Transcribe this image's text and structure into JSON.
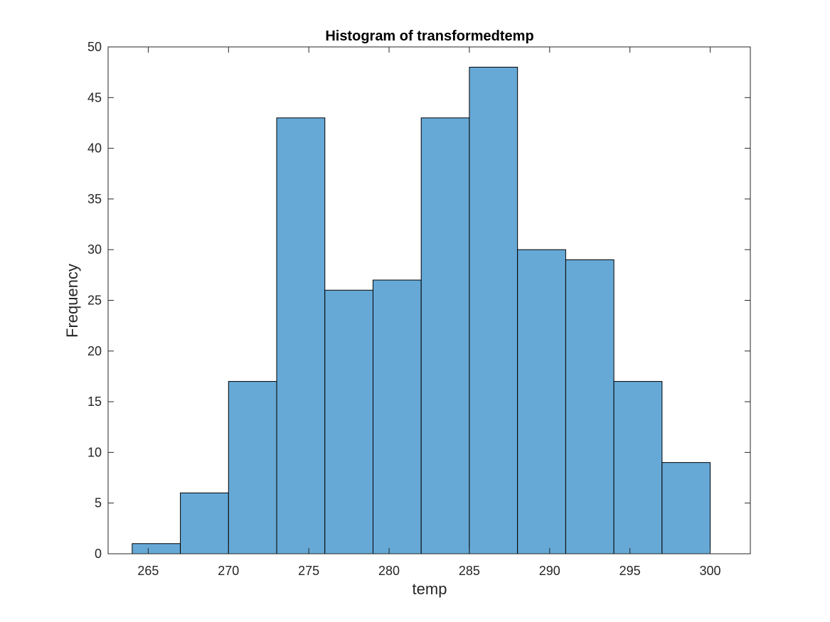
{
  "chart_data": {
    "type": "bar",
    "title": "Histogram of transformedtemp",
    "xlabel": "temp",
    "ylabel": "Frequency",
    "bin_edges": [
      264,
      267,
      270,
      273,
      276,
      279,
      282,
      285,
      288,
      291,
      294,
      297,
      300
    ],
    "values": [
      1,
      6,
      17,
      43,
      26,
      27,
      43,
      48,
      30,
      29,
      17,
      9
    ],
    "xlim": [
      262.5,
      302.5
    ],
    "ylim": [
      0,
      50
    ],
    "xticks": [
      265,
      270,
      275,
      280,
      285,
      290,
      295,
      300
    ],
    "yticks": [
      0,
      5,
      10,
      15,
      20,
      25,
      30,
      35,
      40,
      45,
      50
    ],
    "bar_color": "#66a9d7",
    "grid": false,
    "box": true
  }
}
